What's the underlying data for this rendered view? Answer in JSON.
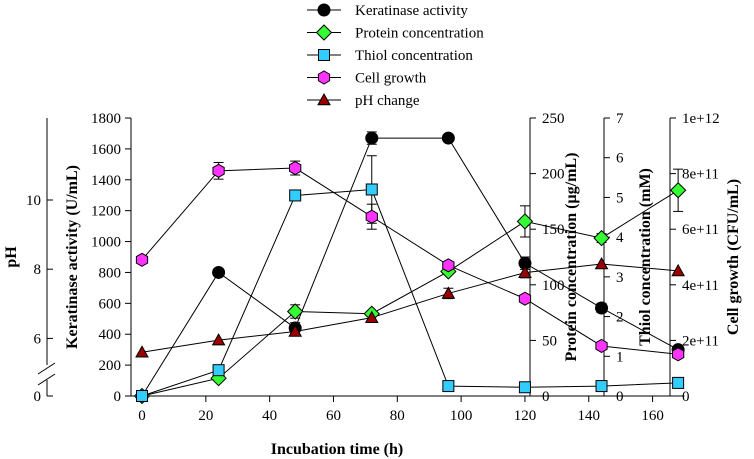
{
  "chart_data": {
    "type": "line",
    "xlabel": "Incubation time (h)",
    "x_ticks": [
      "0",
      "20",
      "40",
      "60",
      "80",
      "100",
      "120",
      "140",
      "160"
    ],
    "xlim": [
      0,
      170
    ],
    "axes": {
      "ph": {
        "label": "pH",
        "ticks": [
          "0",
          "6",
          "8",
          "10"
        ]
      },
      "keratinase": {
        "label": "Keratinase activity (U/mL)",
        "ylim": [
          0,
          1800
        ],
        "ticks": [
          "0",
          "200",
          "400",
          "600",
          "800",
          "1000",
          "1200",
          "1400",
          "1600",
          "1800"
        ]
      },
      "protein": {
        "label": "Protein concentration (µg/mL)",
        "ylim": [
          0,
          250
        ],
        "ticks": [
          "0",
          "50",
          "100",
          "150",
          "200",
          "250"
        ]
      },
      "thiol": {
        "label": "Thiol concentration (mM)",
        "ylim": [
          0,
          7
        ],
        "ticks": [
          "0",
          "1",
          "2",
          "3",
          "4",
          "5",
          "6",
          "7"
        ]
      },
      "cell": {
        "label": "Cell growth (CFU/mL)",
        "ylim": [
          0,
          1000000000000
        ],
        "ticks": [
          "0",
          "2e+11",
          "4e+11",
          "6e+11",
          "8e+11",
          "1e+12"
        ]
      }
    },
    "series": [
      {
        "name": "Keratinase activity",
        "axis": "keratinase",
        "marker": "circle",
        "color": "#000000",
        "x": [
          0,
          24,
          48,
          72,
          96,
          120,
          144,
          168
        ],
        "y": [
          0,
          800,
          440,
          1670,
          1670,
          860,
          570,
          300
        ],
        "err": [
          0,
          0,
          35,
          40,
          0,
          40,
          30,
          0
        ]
      },
      {
        "name": "Protein concentration",
        "axis": "protein",
        "marker": "diamond",
        "color": "#33ff33",
        "x": [
          0,
          24,
          48,
          72,
          96,
          120,
          144,
          168
        ],
        "y": [
          0,
          16,
          76,
          74,
          112,
          157,
          142,
          185
        ],
        "err": [
          0,
          0,
          6,
          0,
          0,
          14,
          4,
          19
        ]
      },
      {
        "name": "Thiol concentration",
        "axis": "thiol",
        "marker": "square",
        "color": "#33ccff",
        "x": [
          0,
          24,
          48,
          72,
          96,
          120,
          144,
          168
        ],
        "y": [
          0,
          0.65,
          5.05,
          5.2,
          0.25,
          0.22,
          0.25,
          0.33
        ],
        "err": [
          0,
          0,
          0,
          0.85,
          0,
          0,
          0,
          0
        ]
      },
      {
        "name": "Cell growth",
        "axis": "cell",
        "marker": "hexagon",
        "color": "#ff33ff",
        "x": [
          0,
          24,
          48,
          72,
          96,
          120,
          144,
          168
        ],
        "y": [
          490000000000,
          810000000000,
          820000000000,
          645000000000,
          470000000000,
          350000000000,
          180000000000,
          150000000000
        ],
        "err": [
          0,
          30000000000,
          25000000000,
          45000000000,
          0,
          0,
          0,
          0
        ]
      },
      {
        "name": "pH change",
        "axis": "ph",
        "marker": "triangle",
        "color": "#990000",
        "x": [
          0,
          24,
          48,
          72,
          96,
          120,
          144,
          168
        ],
        "y": [
          5.6,
          5.95,
          6.2,
          6.6,
          7.3,
          7.9,
          8.15,
          7.95
        ],
        "err": [
          0,
          0,
          0,
          0,
          0.15,
          0.15,
          0,
          0
        ]
      }
    ],
    "legend": {
      "position": "top-center",
      "items": [
        {
          "name": "Keratinase activity",
          "marker": "circle",
          "color": "#000000"
        },
        {
          "name": "Protein concentration",
          "marker": "diamond",
          "color": "#33ff33"
        },
        {
          "name": "Thiol concentration",
          "marker": "square",
          "color": "#33ccff"
        },
        {
          "name": "Cell growth",
          "marker": "hexagon",
          "color": "#ff33ff"
        },
        {
          "name": "pH change",
          "marker": "triangle",
          "color": "#990000"
        }
      ]
    }
  }
}
